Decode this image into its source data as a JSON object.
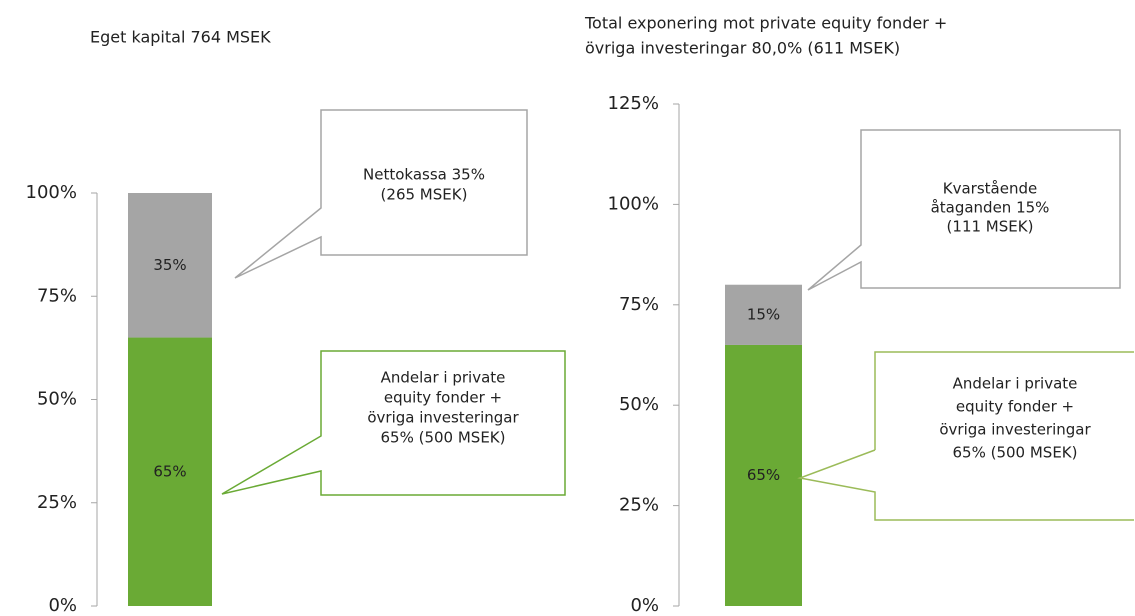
{
  "chart_data": [
    {
      "type": "stacked_bar",
      "title": [
        "Eget kapital 764 MSEK"
      ],
      "categories": [
        null
      ],
      "series": [
        {
          "name": "Andelar i private equity fonder + övriga investeringar",
          "color": "#6aaa35",
          "values": [
            65
          ],
          "value_labels": [
            "65%"
          ]
        },
        {
          "name": "Nettokassa",
          "color": "#a5a5a5",
          "values": [
            35
          ],
          "value_labels": [
            "35%"
          ]
        }
      ],
      "ylim": [
        0,
        100
      ],
      "yticks": [
        {
          "value": 0,
          "label": "0%"
        },
        {
          "value": 25,
          "label": "25%"
        },
        {
          "value": 50,
          "label": "50%"
        },
        {
          "value": 75,
          "label": "75%"
        },
        {
          "value": 100,
          "label": "100%"
        }
      ],
      "annotations": [
        [
          "Andelar i private",
          "equity fonder +",
          "övriga investeringar",
          "65% (500 MSEK)"
        ],
        [
          "Nettokassa 35%",
          "(265 MSEK)"
        ]
      ]
    },
    {
      "type": "stacked_bar",
      "title": [
        "Total exponering mot private equity fonder +",
        "övriga investeringar 80,0% (611 MSEK)"
      ],
      "categories": [
        null
      ],
      "series": [
        {
          "name": "Andelar i private equity fonder + övriga investeringar",
          "color": "#6aaa35",
          "values": [
            65
          ],
          "value_labels": [
            "65%"
          ]
        },
        {
          "name": "Kvarstående åtaganden",
          "color": "#a5a5a5",
          "values": [
            15
          ],
          "value_labels": [
            "15%"
          ]
        }
      ],
      "ylim": [
        0,
        125
      ],
      "yticks": [
        {
          "value": 0,
          "label": "0%"
        },
        {
          "value": 25,
          "label": "25%"
        },
        {
          "value": 50,
          "label": "50%"
        },
        {
          "value": 75,
          "label": "75%"
        },
        {
          "value": 100,
          "label": "100%"
        },
        {
          "value": 125,
          "label": "125%"
        }
      ],
      "annotations": [
        [
          "Andelar i private",
          "equity fonder +",
          "övriga investeringar",
          "65% (500 MSEK)"
        ],
        [
          "Kvarstående",
          "åtaganden 15%",
          "(111 MSEK)"
        ]
      ]
    }
  ]
}
